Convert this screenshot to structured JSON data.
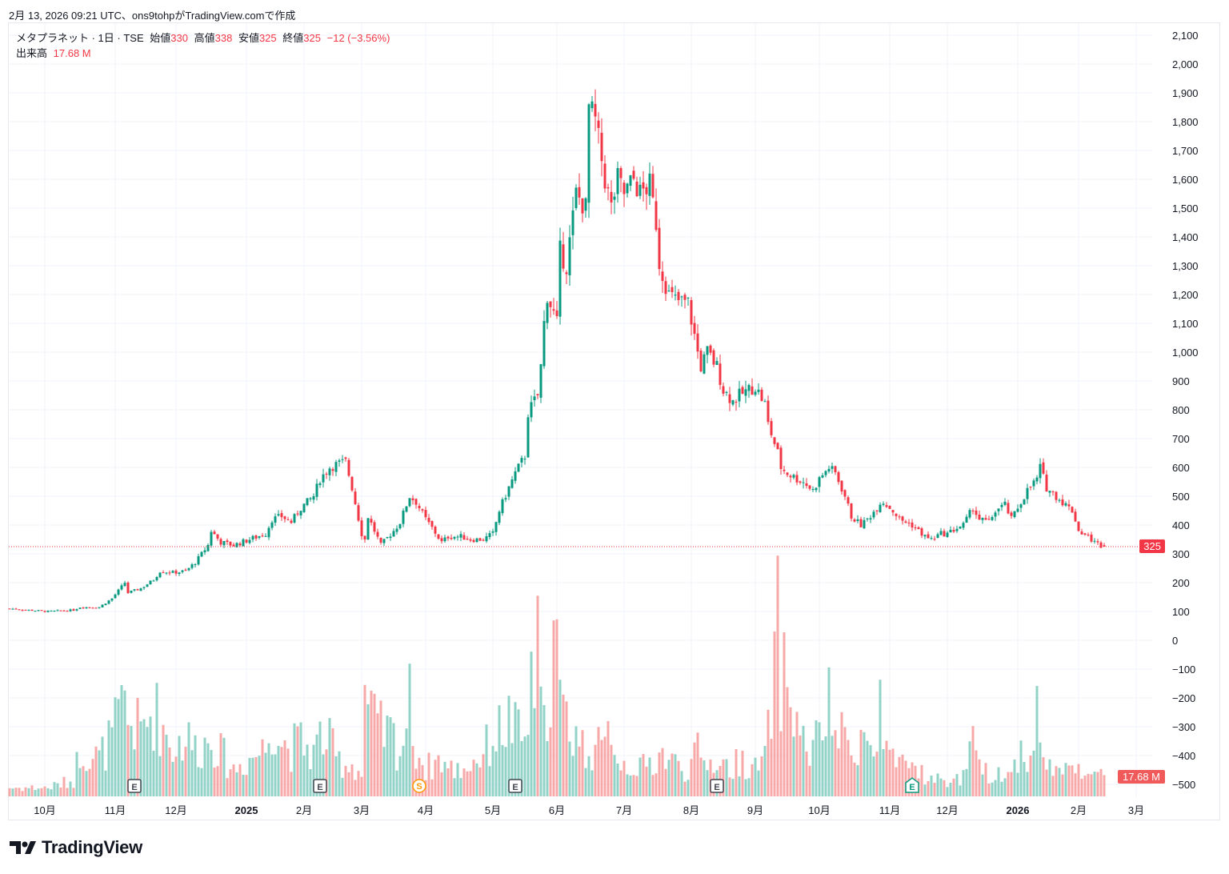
{
  "credit": "2月 13, 2026 09:21 UTC、ons9tohpがTradingView.comで作成",
  "legend": {
    "symbol": "メタプラネット · 1日 · TSE",
    "open_label": "始値",
    "open": "330",
    "high_label": "高値",
    "high": "338",
    "low_label": "安値",
    "low": "325",
    "close_label": "終値",
    "close": "325",
    "change": "−12 (−3.56%)",
    "volume_label": "出来高",
    "volume": "17.68 M"
  },
  "last_price_tag": "325",
  "last_volume_tag": "17.68 M",
  "logo_text": "TradingView",
  "colors": {
    "up": "#089981",
    "down": "#f23645",
    "up_vol": "#92d2c7",
    "down_vol": "#f7a8a8",
    "grid": "#f0f3fa"
  },
  "chart_data": {
    "type": "candlestick",
    "title": "メタプラネット · 1日 · TSE",
    "price_axis": {
      "ticks": [
        "2,100",
        "2,000",
        "1,900",
        "1,800",
        "1,700",
        "1,600",
        "1,500",
        "1,400",
        "1,300",
        "1,200",
        "1,100",
        "1,000",
        "900",
        "800",
        "700",
        "600",
        "500",
        "400",
        "300",
        "200",
        "100",
        "0",
        "−100",
        "−200",
        "−300",
        "−400",
        "−500"
      ],
      "range": [
        -500,
        2100
      ]
    },
    "time_axis": {
      "ticks": [
        {
          "label": "10月",
          "day": 11
        },
        {
          "label": "11月",
          "day": 33
        },
        {
          "label": "12月",
          "day": 52
        },
        {
          "label": "2025",
          "day": 74,
          "bold": true
        },
        {
          "label": "2月",
          "day": 92
        },
        {
          "label": "3月",
          "day": 110
        },
        {
          "label": "4月",
          "day": 130
        },
        {
          "label": "5月",
          "day": 151
        },
        {
          "label": "6月",
          "day": 171
        },
        {
          "label": "7月",
          "day": 192
        },
        {
          "label": "8月",
          "day": 213
        },
        {
          "label": "9月",
          "day": 233
        },
        {
          "label": "10月",
          "day": 253
        },
        {
          "label": "11月",
          "day": 275
        },
        {
          "label": "12月",
          "day": 293
        },
        {
          "label": "2026",
          "day": 315,
          "bold": true
        },
        {
          "label": "2月",
          "day": 334
        },
        {
          "label": "3月",
          "day": 352
        }
      ]
    },
    "volume_axis_max_millions": 160,
    "series_note": "anchor points: [trading_day_index, close, volume_millions]",
    "anchors": [
      [
        0,
        110,
        8
      ],
      [
        12,
        100,
        8
      ],
      [
        20,
        105,
        15
      ],
      [
        22,
        115,
        45
      ],
      [
        28,
        115,
        35
      ],
      [
        32,
        145,
        55
      ],
      [
        36,
        200,
        85
      ],
      [
        37,
        165,
        70
      ],
      [
        41,
        180,
        60
      ],
      [
        45,
        210,
        80
      ],
      [
        47,
        240,
        70
      ],
      [
        51,
        235,
        45
      ],
      [
        55,
        240,
        55
      ],
      [
        58,
        270,
        45
      ],
      [
        62,
        330,
        50
      ],
      [
        63,
        380,
        60
      ],
      [
        66,
        340,
        40
      ],
      [
        70,
        330,
        25
      ],
      [
        75,
        350,
        35
      ],
      [
        80,
        370,
        45
      ],
      [
        82,
        420,
        75
      ],
      [
        85,
        430,
        50
      ],
      [
        88,
        410,
        45
      ],
      [
        91,
        460,
        50
      ],
      [
        95,
        500,
        40
      ],
      [
        97,
        560,
        55
      ],
      [
        100,
        600,
        50
      ],
      [
        102,
        610,
        35
      ],
      [
        105,
        620,
        30
      ],
      [
        107,
        530,
        30
      ],
      [
        110,
        370,
        20
      ],
      [
        111,
        350,
        100
      ],
      [
        112,
        430,
        75
      ],
      [
        116,
        330,
        60
      ],
      [
        120,
        380,
        55
      ],
      [
        122,
        410,
        40
      ],
      [
        125,
        500,
        85
      ],
      [
        127,
        480,
        45
      ],
      [
        130,
        420,
        25
      ],
      [
        132,
        390,
        30
      ],
      [
        135,
        340,
        35
      ],
      [
        137,
        360,
        25
      ],
      [
        141,
        360,
        25
      ],
      [
        144,
        350,
        30
      ],
      [
        148,
        350,
        40
      ],
      [
        151,
        370,
        55
      ],
      [
        153,
        450,
        60
      ],
      [
        156,
        530,
        70
      ],
      [
        158,
        580,
        60
      ],
      [
        161,
        640,
        50
      ],
      [
        162,
        790,
        75
      ],
      [
        165,
        850,
        130
      ],
      [
        166,
        950,
        80
      ],
      [
        167,
        1100,
        60
      ],
      [
        168,
        1200,
        100
      ],
      [
        171,
        1100,
        150
      ],
      [
        172,
        1350,
        80
      ],
      [
        174,
        1300,
        70
      ],
      [
        177,
        1550,
        60
      ],
      [
        180,
        1500,
        40
      ],
      [
        181,
        1850,
        50
      ],
      [
        183,
        1800,
        45
      ],
      [
        186,
        1600,
        40
      ],
      [
        187,
        1550,
        60
      ],
      [
        188,
        1500,
        75
      ],
      [
        190,
        1600,
        35
      ],
      [
        192,
        1550,
        30
      ],
      [
        195,
        1600,
        30
      ],
      [
        197,
        1550,
        25
      ],
      [
        200,
        1580,
        30
      ],
      [
        202,
        1450,
        35
      ],
      [
        203,
        1310,
        40
      ],
      [
        206,
        1200,
        35
      ],
      [
        208,
        1180,
        30
      ],
      [
        212,
        1170,
        25
      ],
      [
        215,
        1000,
        40
      ],
      [
        216,
        950,
        30
      ],
      [
        218,
        1000,
        30
      ],
      [
        221,
        950,
        35
      ],
      [
        223,
        870,
        30
      ],
      [
        226,
        830,
        25
      ],
      [
        228,
        850,
        35
      ],
      [
        231,
        870,
        30
      ],
      [
        233,
        880,
        25
      ],
      [
        236,
        820,
        35
      ],
      [
        237,
        750,
        55
      ],
      [
        240,
        650,
        150
      ],
      [
        241,
        600,
        120
      ],
      [
        243,
        580,
        100
      ],
      [
        246,
        560,
        70
      ],
      [
        248,
        550,
        50
      ],
      [
        251,
        520,
        40
      ],
      [
        253,
        560,
        60
      ],
      [
        256,
        600,
        80
      ],
      [
        258,
        580,
        60
      ],
      [
        261,
        500,
        50
      ],
      [
        263,
        430,
        45
      ],
      [
        266,
        400,
        60
      ],
      [
        268,
        420,
        45
      ],
      [
        271,
        460,
        40
      ],
      [
        272,
        480,
        95
      ],
      [
        273,
        480,
        45
      ],
      [
        276,
        450,
        30
      ],
      [
        278,
        420,
        25
      ],
      [
        282,
        400,
        30
      ],
      [
        286,
        360,
        20
      ],
      [
        288,
        350,
        15
      ],
      [
        291,
        370,
        15
      ],
      [
        293,
        370,
        15
      ],
      [
        296,
        390,
        15
      ],
      [
        298,
        400,
        20
      ],
      [
        301,
        460,
        45
      ],
      [
        303,
        420,
        25
      ],
      [
        306,
        410,
        20
      ],
      [
        308,
        450,
        25
      ],
      [
        311,
        470,
        20
      ],
      [
        313,
        420,
        20
      ],
      [
        316,
        480,
        45
      ],
      [
        318,
        520,
        35
      ],
      [
        321,
        560,
        75
      ],
      [
        322,
        600,
        45
      ],
      [
        324,
        530,
        30
      ],
      [
        327,
        500,
        25
      ],
      [
        329,
        480,
        20
      ],
      [
        332,
        450,
        30
      ],
      [
        333,
        420,
        40
      ],
      [
        334,
        380,
        30
      ],
      [
        337,
        360,
        20
      ],
      [
        339,
        340,
        18
      ],
      [
        342,
        325,
        17.68
      ]
    ],
    "last": {
      "open": 330,
      "high": 338,
      "low": 325,
      "close": 325,
      "volume_millions": 17.68
    },
    "events": [
      {
        "type": "E",
        "day": 39
      },
      {
        "type": "E",
        "day": 97
      },
      {
        "type": "S",
        "day": 128
      },
      {
        "type": "E",
        "day": 158
      },
      {
        "type": "E",
        "day": 221
      },
      {
        "type": "E",
        "day": 282,
        "highlight": true
      }
    ]
  }
}
